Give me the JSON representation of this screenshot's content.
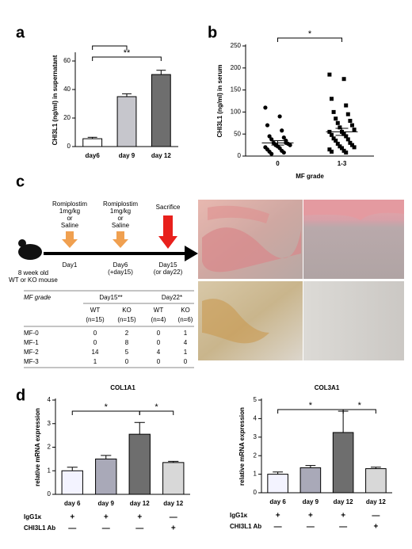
{
  "panel_labels": [
    "a",
    "b",
    "c",
    "d"
  ],
  "chart_data": [
    {
      "type": "bar",
      "ylabel": "CHI3L1 (ng/ml) in supernatant",
      "categories": [
        "day6",
        "day 9",
        "day 12"
      ],
      "values": [
        5.5,
        35,
        50.5
      ],
      "errors": [
        1,
        2,
        3
      ],
      "colors": [
        "#ffffff",
        "#c6c6cc",
        "#6e6e6e"
      ],
      "ylim": [
        0,
        65
      ],
      "yticks": [
        0,
        20,
        40,
        60
      ],
      "annotations": [
        "**"
      ]
    },
    {
      "type": "scatter",
      "ylabel": "CHI3L1 (ng/ml) in serum",
      "xlabel": "MF grade",
      "categories": [
        "0",
        "1-3"
      ],
      "series": [
        {
          "marker": "circle",
          "values": [
            110,
            90,
            70,
            58,
            45,
            42,
            38,
            35,
            30,
            28,
            25,
            25,
            22,
            20,
            18,
            15,
            12,
            10,
            8,
            5,
            30
          ],
          "mean": 30,
          "error": 5
        },
        {
          "marker": "square",
          "values": [
            185,
            175,
            130,
            115,
            100,
            95,
            85,
            80,
            75,
            70,
            65,
            60,
            55,
            55,
            50,
            48,
            45,
            40,
            38,
            35,
            30,
            28,
            25,
            22,
            20,
            18,
            15,
            12,
            10,
            8
          ],
          "mean": 55,
          "error": 8
        }
      ],
      "ylim": [
        0,
        250
      ],
      "yticks": [
        0,
        50,
        100,
        150,
        200,
        250
      ],
      "annotations": [
        "*"
      ]
    },
    {
      "type": "bar",
      "title": "COL1A1",
      "ylabel": "relative mRNA expression",
      "categories": [
        "day 6",
        "day 9",
        "day 12",
        "day 12"
      ],
      "values": [
        1.0,
        1.5,
        2.55,
        1.35
      ],
      "errors": [
        0.15,
        0.15,
        0.5,
        0.05
      ],
      "colors": [
        "#f3f3ff",
        "#a9a9b8",
        "#6e6e6e",
        "#d8d8d8"
      ],
      "ylim": [
        0,
        4
      ],
      "yticks": [
        0,
        1,
        2,
        3,
        4
      ],
      "annotations": [
        "*",
        "*"
      ],
      "treatments": [
        {
          "label": "IgG1κ",
          "values": [
            "+",
            "+",
            "+",
            "—"
          ]
        },
        {
          "label": "CHI3L1 Ab",
          "values": [
            "—",
            "—",
            "—",
            "+"
          ]
        }
      ]
    },
    {
      "type": "bar",
      "title": "COL3A1",
      "ylabel": "relative mRNA expression",
      "categories": [
        "day 6",
        "day 9",
        "day 12",
        "day 12"
      ],
      "values": [
        1.0,
        1.35,
        3.25,
        1.3
      ],
      "errors": [
        0.12,
        0.12,
        1.15,
        0.08
      ],
      "colors": [
        "#f3f3ff",
        "#a9a9b8",
        "#6e6e6e",
        "#d8d8d8"
      ],
      "ylim": [
        0,
        5
      ],
      "yticks": [
        0,
        1,
        2,
        3,
        4,
        5
      ],
      "annotations": [
        "*",
        "*"
      ],
      "treatments": [
        {
          "label": "IgG1κ",
          "values": [
            "+",
            "+",
            "+",
            "—"
          ]
        },
        {
          "label": "CHI3L1 Ab",
          "values": [
            "—",
            "—",
            "—",
            "+"
          ]
        }
      ]
    }
  ],
  "timeline": {
    "events": [
      {
        "above": [
          "Romiplostim",
          "1mg/kg",
          "or",
          "Saline"
        ],
        "below": [
          "Day1"
        ]
      },
      {
        "above": [
          "Romiplostim",
          "1mg/kg",
          "or",
          "Saline"
        ],
        "below": [
          "Day6",
          "(+day15)"
        ]
      },
      {
        "above": [
          "Sacrifice"
        ],
        "below": [
          "Day15",
          "(or day22)"
        ]
      }
    ],
    "mouse": [
      "8 week old",
      "WT or KO mouse"
    ]
  },
  "table": {
    "corner": "MF grade",
    "groups": [
      "Day15**",
      "Day22*"
    ],
    "columns": [
      "WT",
      "KO",
      "WT",
      "KO"
    ],
    "n": [
      "(n=15)",
      "(n=15)",
      "(n=4)",
      "(n=6)"
    ],
    "rows": [
      [
        "MF-0",
        0,
        2,
        0,
        1
      ],
      [
        "MF-1",
        0,
        8,
        0,
        4
      ],
      [
        "MF-2",
        14,
        5,
        4,
        1
      ],
      [
        "MF-3",
        1,
        0,
        0,
        0
      ]
    ]
  }
}
